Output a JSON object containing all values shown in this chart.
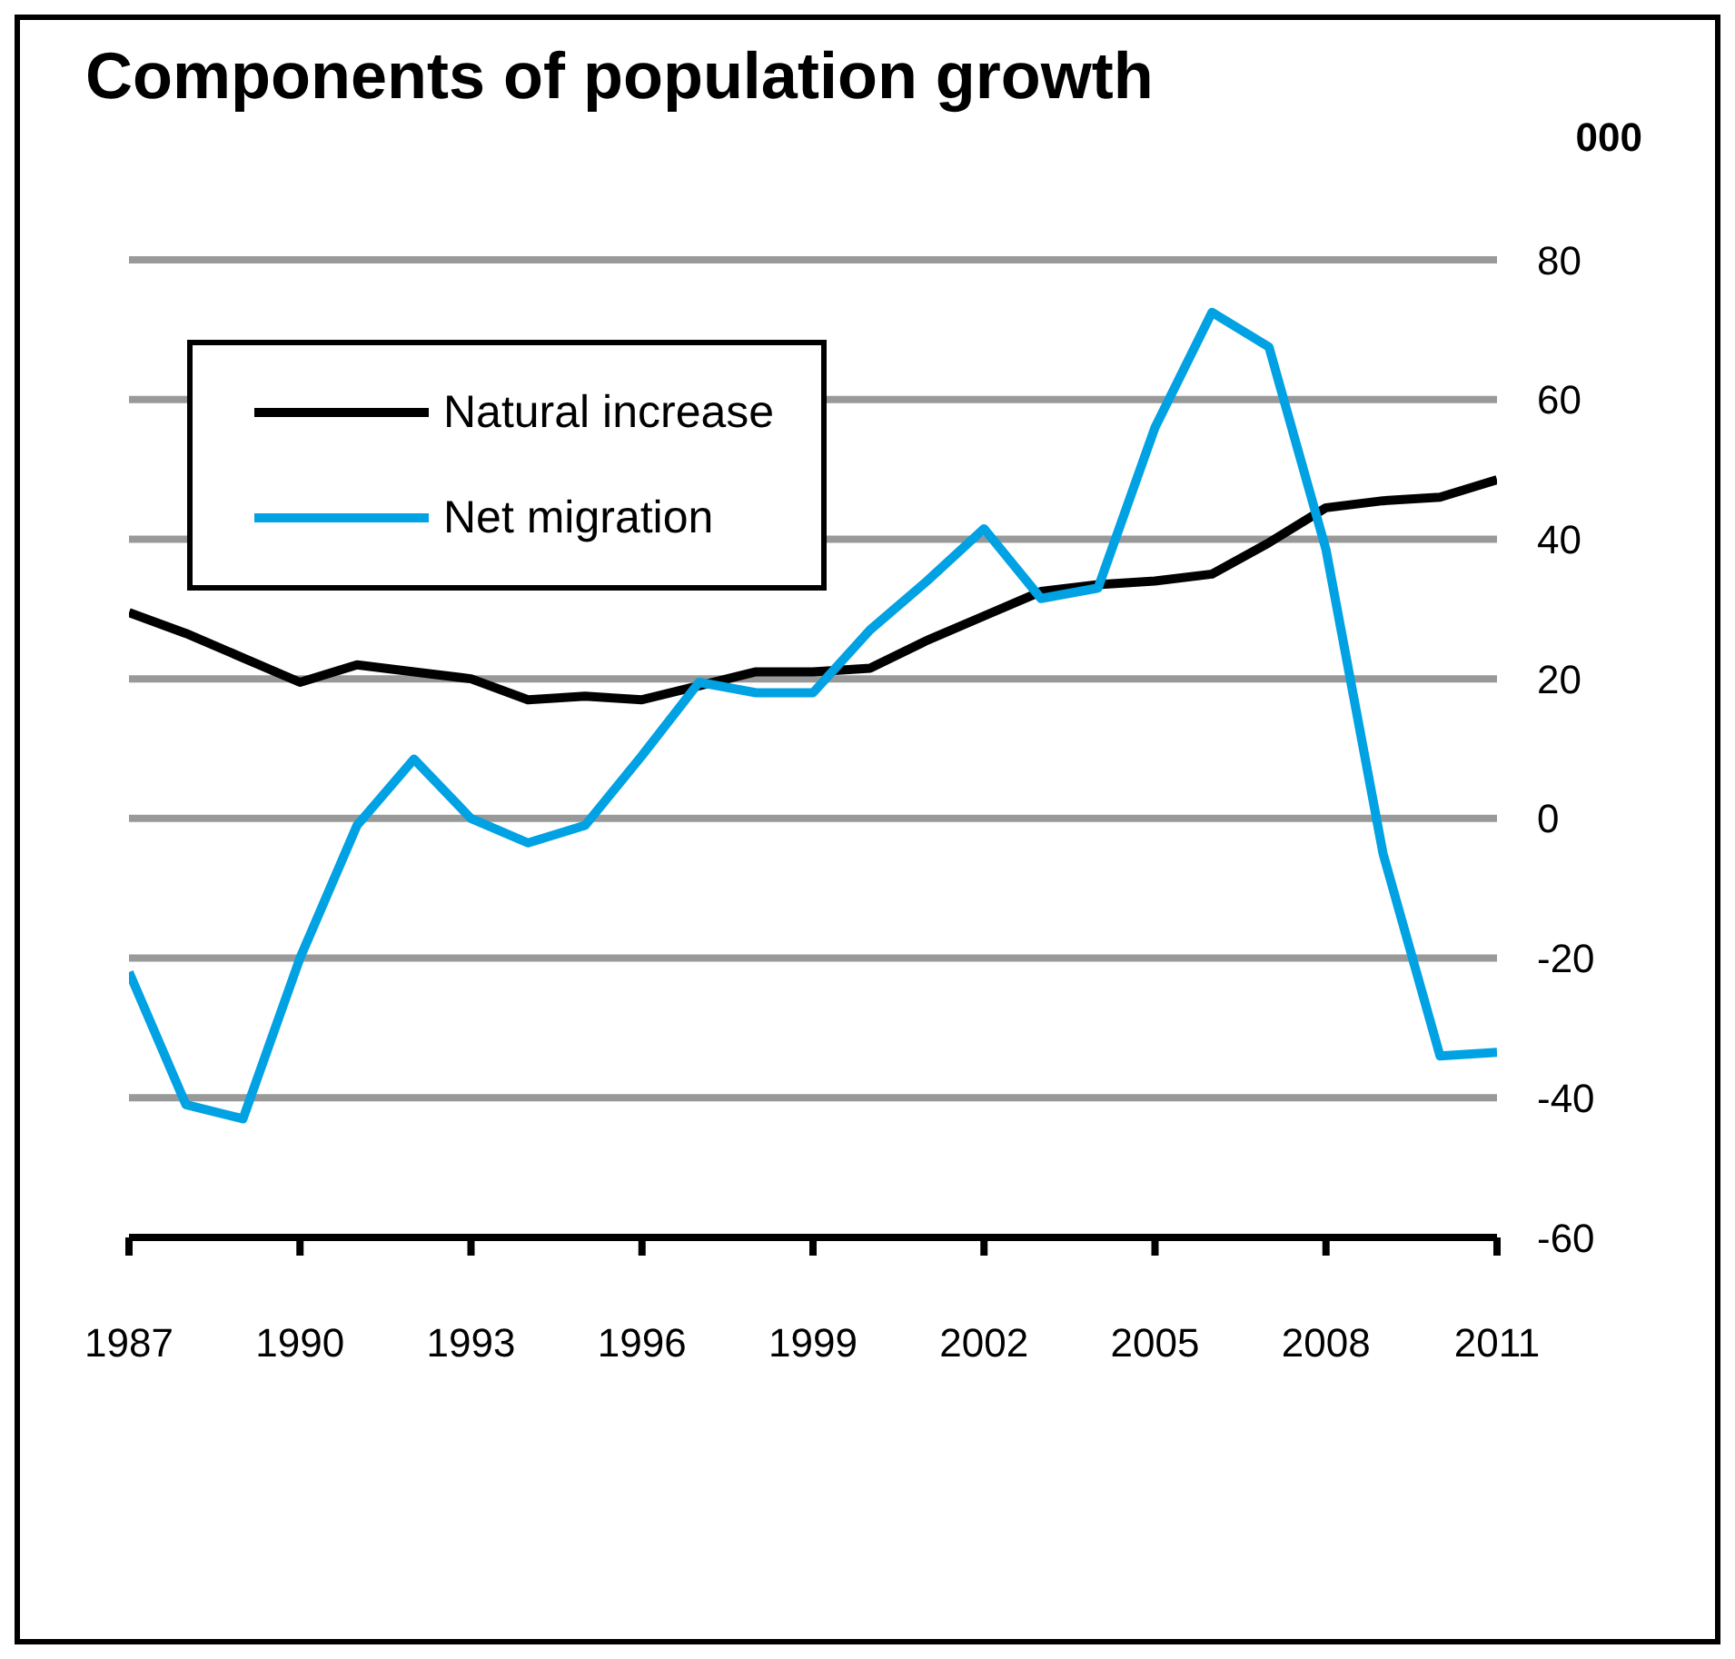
{
  "chart_data": {
    "type": "line",
    "title": "Components of population growth",
    "ylabel": "000",
    "x": [
      1987,
      1988,
      1989,
      1990,
      1991,
      1992,
      1993,
      1994,
      1995,
      1996,
      1997,
      1998,
      1999,
      2000,
      2001,
      2002,
      2003,
      2004,
      2005,
      2006,
      2007,
      2008,
      2009,
      2010,
      2011
    ],
    "series": [
      {
        "name": "Natural increase",
        "color": "#000000",
        "values": [
          29.5,
          26.5,
          23,
          19.5,
          22,
          21,
          20,
          17,
          17.5,
          17,
          19,
          21,
          21,
          21.5,
          25.5,
          29,
          32.5,
          33.5,
          34,
          35,
          39.5,
          44.5,
          45.5,
          46,
          48.5
        ]
      },
      {
        "name": "Net migration",
        "color": "#00a2e3",
        "values": [
          -22,
          -41,
          -43,
          -20,
          -1,
          8.5,
          0,
          -3.5,
          -1,
          9,
          19.5,
          18,
          18,
          27,
          34,
          41.5,
          31.5,
          33,
          56,
          72.5,
          67.5,
          38.5,
          -5,
          -34,
          -33.5
        ]
      }
    ],
    "xlim": [
      1987,
      2011
    ],
    "xticks": [
      1987,
      1990,
      1993,
      1996,
      1999,
      2002,
      2005,
      2008,
      2011
    ],
    "ylim": [
      -60,
      80
    ],
    "yticks": [
      -60,
      -40,
      -20,
      0,
      20,
      40,
      60,
      80
    ],
    "grid": "y",
    "legend": "top left",
    "line_style": "solid"
  }
}
